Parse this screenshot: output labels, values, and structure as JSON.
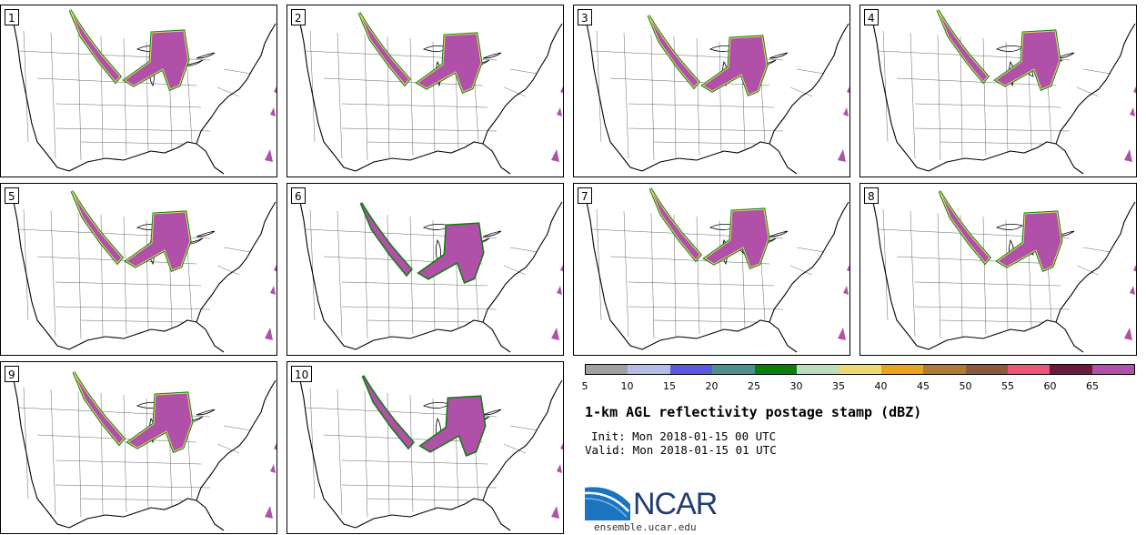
{
  "panels": [
    {
      "label": "1"
    },
    {
      "label": "2"
    },
    {
      "label": "3"
    },
    {
      "label": "4"
    },
    {
      "label": "5"
    },
    {
      "label": "6"
    },
    {
      "label": "7"
    },
    {
      "label": "8"
    },
    {
      "label": "9"
    },
    {
      "label": "10"
    }
  ],
  "colorbar": {
    "colors": [
      "#a0a0a0",
      "#b4bce6",
      "#5a5adc",
      "#4f8f8f",
      "#0a7f0a",
      "#bcdcbc",
      "#ecd870",
      "#e8a41e",
      "#b07a36",
      "#8b5a3c",
      "#ec5478",
      "#6a1a3a",
      "#b050a8"
    ],
    "ticks": [
      "5",
      "10",
      "15",
      "20",
      "25",
      "30",
      "35",
      "40",
      "45",
      "50",
      "55",
      "60",
      "65"
    ]
  },
  "title": "1-km AGL reflectivity postage stamp (dBZ)",
  "init": "Init: Mon 2018-01-15 00 UTC",
  "valid": "Valid: Mon 2018-01-15 01 UTC",
  "logo": {
    "name": "NCAR",
    "url": "ensemble.ucar.edu"
  }
}
